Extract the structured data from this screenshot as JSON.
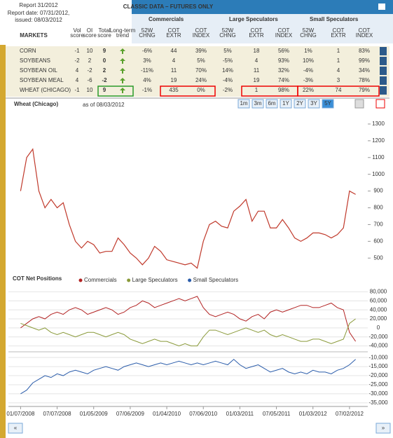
{
  "report": {
    "title": "Report 31/2012",
    "date": "Report date: 07/31/2012,",
    "issued": "issued: 08/03/2012"
  },
  "banner": "CLASSIC DATA – FUTURES ONLY",
  "groups": [
    "Commercials",
    "Large Speculators",
    "Small Speculators"
  ],
  "columns": {
    "markets": "MARKETS",
    "vol": "Vol score",
    "oi": "OI score",
    "total": "Total score",
    "trend": "Long-term trend",
    "sub": [
      "52W CHNG",
      "COT EXTR",
      "COT INDEX"
    ]
  },
  "table": {
    "rows": [
      [
        "CORN",
        "-1",
        "10",
        "9",
        "-6%",
        "44",
        "39%",
        "5%",
        "18",
        "56%",
        "1%",
        "1",
        "83%"
      ],
      [
        "SOYBEANS",
        "-2",
        "2",
        "0",
        "3%",
        "4",
        "5%",
        "-5%",
        "4",
        "93%",
        "10%",
        "1",
        "99%"
      ],
      [
        "SOYBEAN OIL",
        "4",
        "-2",
        "2",
        "-11%",
        "11",
        "70%",
        "14%",
        "11",
        "32%",
        "-4%",
        "4",
        "34%"
      ],
      [
        "SOYBEAN MEAL",
        "4",
        "-6",
        "-2",
        "4%",
        "19",
        "24%",
        "-4%",
        "19",
        "74%",
        "-3%",
        "3",
        "78%"
      ],
      [
        "WHEAT (CHICAGO)",
        "-1",
        "10",
        "9",
        "-1%",
        "435",
        "0%",
        "-2%",
        "1",
        "98%",
        "22%",
        "74",
        "79%"
      ]
    ]
  },
  "price_chart": {
    "type": "line",
    "title": "Wheat (Chicago)",
    "subtitle": "as of 08/03/2012",
    "ranges": [
      "1m",
      "3m",
      "6m",
      "1Y",
      "2Y",
      "3Y",
      "5Y"
    ],
    "color": "#c0392b",
    "xlim": [
      -2,
      57
    ],
    "ylim": [
      430,
      1350
    ],
    "yticks": [
      500,
      600,
      700,
      800,
      900,
      1000,
      1100,
      1200,
      1300
    ],
    "values": [
      900,
      1100,
      1150,
      900,
      800,
      850,
      800,
      830,
      700,
      600,
      560,
      600,
      580,
      530,
      540,
      540,
      620,
      580,
      530,
      500,
      460,
      500,
      570,
      540,
      490,
      480,
      470,
      460,
      470,
      440,
      600,
      700,
      720,
      690,
      680,
      780,
      810,
      850,
      720,
      780,
      780,
      680,
      680,
      730,
      680,
      620,
      600,
      620,
      650,
      650,
      640,
      620,
      640,
      680,
      900,
      880
    ]
  },
  "cot_chart": {
    "type": "line",
    "title": "COT Net Positions",
    "xlim": [
      -2,
      57
    ],
    "xticks": [
      {
        "value": 0,
        "label": "01/07/2008"
      },
      {
        "value": 6,
        "label": "07/07/2008"
      },
      {
        "value": 12,
        "label": "01/05/2009"
      },
      {
        "value": 18,
        "label": "07/06/2009"
      },
      {
        "value": 24,
        "label": "01/04/2010"
      },
      {
        "value": 30,
        "label": "07/06/2010"
      },
      {
        "value": 36,
        "label": "01/03/2011"
      },
      {
        "value": 42,
        "label": "07/05/2011"
      },
      {
        "value": 48,
        "label": "01/03/2012"
      },
      {
        "value": 54,
        "label": "07/02/2012"
      }
    ],
    "ylim": [
      -50000,
      90000
    ],
    "yticks": [
      {
        "value": 80000,
        "label": "80,000"
      },
      {
        "value": 60000,
        "label": "60,000"
      },
      {
        "value": 40000,
        "label": "40,000"
      },
      {
        "value": 20000,
        "label": "20,000"
      },
      0,
      {
        "value": -20000,
        "label": "-20,000"
      },
      {
        "value": -40000,
        "label": "-40,000"
      }
    ],
    "y2lim": [
      -37000,
      -8000
    ],
    "y2ticks": [
      {
        "value": -10000,
        "label": "-10,000"
      },
      {
        "value": -15000,
        "label": "-15,000"
      },
      {
        "value": -20000,
        "label": "-20,000"
      },
      {
        "value": -25000,
        "label": "-25,000"
      },
      {
        "value": -30000,
        "label": "-30,000"
      },
      {
        "value": -35000,
        "label": "-35,000"
      }
    ],
    "series": [
      {
        "name": "Commercials",
        "color": "#b22222",
        "values": [
          0,
          10000,
          20000,
          25000,
          20000,
          30000,
          35000,
          30000,
          40000,
          45000,
          40000,
          30000,
          35000,
          40000,
          45000,
          40000,
          30000,
          35000,
          45000,
          50000,
          60000,
          55000,
          45000,
          50000,
          55000,
          60000,
          65000,
          60000,
          65000,
          70000,
          45000,
          30000,
          25000,
          30000,
          35000,
          30000,
          20000,
          15000,
          25000,
          30000,
          20000,
          35000,
          40000,
          35000,
          40000,
          45000,
          50000,
          50000,
          45000,
          45000,
          50000,
          55000,
          45000,
          40000,
          -10000,
          -30000
        ]
      },
      {
        "name": "Large Speculators",
        "color": "#8a9a3a",
        "values": [
          10000,
          5000,
          0,
          -5000,
          0,
          -10000,
          -15000,
          -10000,
          -15000,
          -20000,
          -15000,
          -10000,
          -10000,
          -15000,
          -20000,
          -15000,
          -10000,
          -15000,
          -25000,
          -30000,
          -35000,
          -30000,
          -25000,
          -30000,
          -30000,
          -35000,
          -40000,
          -35000,
          -40000,
          -40000,
          -20000,
          -5000,
          -5000,
          -10000,
          -15000,
          -10000,
          -5000,
          0,
          -5000,
          -10000,
          -5000,
          -15000,
          -20000,
          -15000,
          -20000,
          -25000,
          -30000,
          -30000,
          -25000,
          -25000,
          -30000,
          -35000,
          -30000,
          -25000,
          10000,
          20000
        ]
      },
      {
        "name": "Small Speculators",
        "color": "#2a5caa",
        "axis": "y2",
        "values": [
          -30000,
          -28000,
          -24000,
          -22000,
          -20000,
          -21000,
          -19000,
          -20000,
          -18000,
          -17000,
          -18000,
          -19000,
          -17000,
          -16000,
          -15000,
          -16000,
          -17000,
          -15000,
          -14000,
          -13000,
          -14000,
          -15000,
          -14000,
          -13000,
          -14000,
          -13000,
          -12000,
          -13000,
          -14000,
          -13000,
          -14000,
          -13000,
          -12000,
          -13000,
          -14000,
          -11000,
          -14000,
          -16000,
          -15000,
          -14000,
          -16000,
          -18000,
          -17000,
          -16000,
          -18000,
          -19000,
          -18000,
          -19000,
          -17000,
          -18000,
          -18000,
          -19000,
          -17000,
          -16000,
          -14000,
          -11000
        ]
      }
    ]
  },
  "nav": [
    "«",
    "»"
  ]
}
